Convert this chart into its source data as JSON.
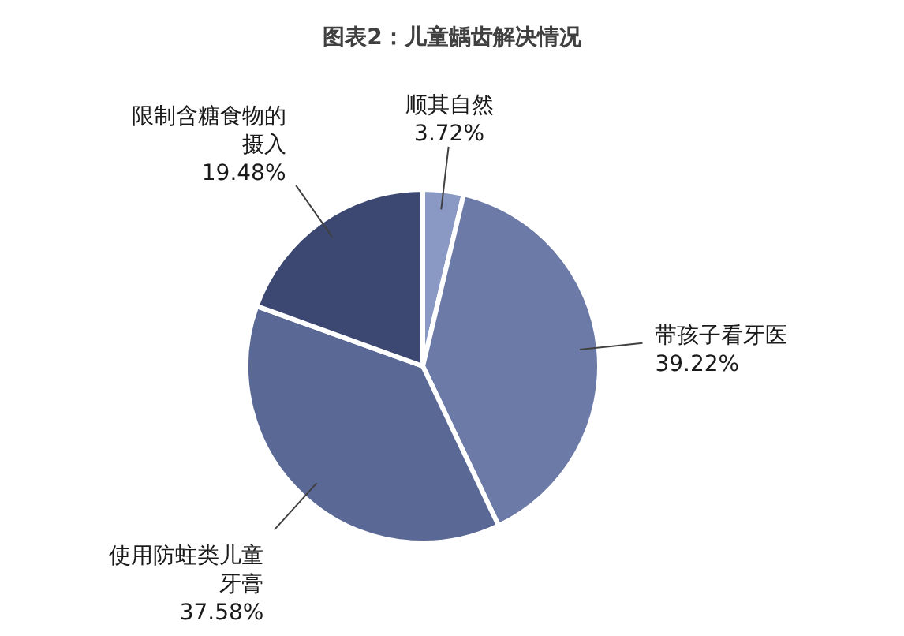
{
  "chart_data": {
    "type": "pie",
    "title": "图表2：儿童龋齿解决情况",
    "categories": [
      "顺其自然",
      "带孩子看牙医",
      "使用防蛀类儿童牙膏",
      "限制含糖食物的摄入"
    ],
    "values": [
      3.72,
      39.22,
      37.58,
      19.48
    ],
    "colors": [
      "#8a98c4",
      "#6c7aa8",
      "#5a6896",
      "#3c4872"
    ],
    "value_labels": [
      "3.72%",
      "39.22%",
      "37.58%",
      "19.48%"
    ]
  }
}
